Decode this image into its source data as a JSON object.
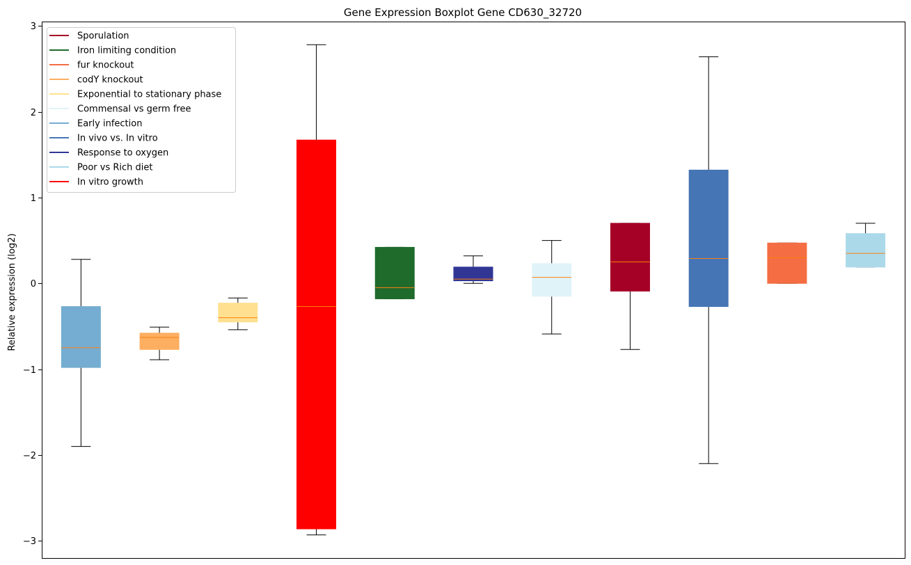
{
  "chart_data": {
    "type": "box",
    "title": "Gene Expression Boxplot Gene CD630_32720",
    "xlabel": "",
    "ylabel": "Relative expression (log2)",
    "ylim": [
      -3.2,
      3.05
    ],
    "yticks": [
      -3,
      -2,
      -1,
      0,
      1,
      2,
      3
    ],
    "ytick_labels": [
      "−3",
      "−2",
      "−1",
      "0",
      "1",
      "2",
      "3"
    ],
    "grid": false,
    "legend_position": "top-left",
    "legend": [
      {
        "label": "Sporulation",
        "color": "#a50026"
      },
      {
        "label": "Iron limiting condition",
        "color": "#1f6b2c"
      },
      {
        "label": "fur knockout",
        "color": "#f46d43"
      },
      {
        "label": "codY knockout",
        "color": "#fdae61"
      },
      {
        "label": "Exponential to stationary phase",
        "color": "#fee090"
      },
      {
        "label": "Commensal vs germ free",
        "color": "#e0f3f8"
      },
      {
        "label": "Early infection",
        "color": "#74add1"
      },
      {
        "label": "In vivo vs. In vitro",
        "color": "#4575b4"
      },
      {
        "label": "Response to oxygen",
        "color": "#313695"
      },
      {
        "label": "Poor vs Rich diet",
        "color": "#abd9e9"
      },
      {
        "label": "In vitro growth",
        "color": "#ff0000"
      }
    ],
    "boxes": [
      {
        "color": "#74add1",
        "whisker_low": -1.9,
        "q1": -0.98,
        "median": -0.75,
        "q3": -0.27,
        "whisker_high": 0.28
      },
      {
        "color": "#fdae61",
        "whisker_low": -0.89,
        "q1": -0.77,
        "median": -0.63,
        "q3": -0.58,
        "whisker_high": -0.51
      },
      {
        "color": "#fee090",
        "whisker_low": -0.54,
        "q1": -0.45,
        "median": -0.4,
        "q3": -0.23,
        "whisker_high": -0.17
      },
      {
        "color": "#ff0000",
        "whisker_low": -2.93,
        "q1": -2.86,
        "median": -0.27,
        "q3": 1.67,
        "whisker_high": 2.78
      },
      {
        "color": "#1f6b2c",
        "whisker_low": -0.18,
        "q1": -0.18,
        "median": -0.05,
        "q3": 0.42,
        "whisker_high": 0.42
      },
      {
        "color": "#313695",
        "whisker_low": 0.0,
        "q1": 0.03,
        "median": 0.05,
        "q3": 0.19,
        "whisker_high": 0.32
      },
      {
        "color": "#e0f3f8",
        "whisker_low": -0.59,
        "q1": -0.15,
        "median": 0.07,
        "q3": 0.23,
        "whisker_high": 0.5
      },
      {
        "color": "#a50026",
        "whisker_low": -0.77,
        "q1": -0.09,
        "median": 0.25,
        "q3": 0.7,
        "whisker_high": 0.7
      },
      {
        "color": "#4575b4",
        "whisker_low": -2.1,
        "q1": -0.27,
        "median": 0.29,
        "q3": 1.32,
        "whisker_high": 2.64
      },
      {
        "color": "#f46d43",
        "whisker_low": 0.0,
        "q1": 0.0,
        "median": 0.3,
        "q3": 0.47,
        "whisker_high": 0.47
      },
      {
        "color": "#abd9e9",
        "whisker_low": 0.19,
        "q1": 0.19,
        "median": 0.35,
        "q3": 0.58,
        "whisker_high": 0.7
      }
    ],
    "median_color": "#ff7f0e"
  }
}
